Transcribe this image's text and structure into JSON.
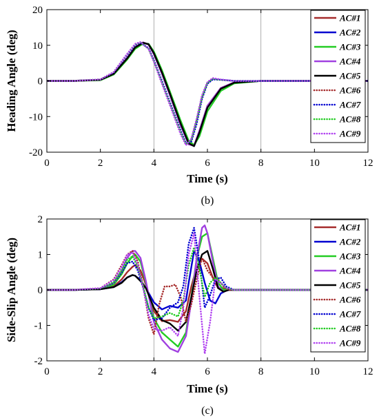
{
  "chart_data": [
    {
      "type": "line",
      "panel_label": "(b)",
      "xlabel": "Time (s)",
      "ylabel": "Heading Angle (deg)",
      "xlim": [
        0,
        12
      ],
      "ylim": [
        -20,
        20
      ],
      "xticks": [
        0,
        2,
        4,
        6,
        8,
        10,
        12
      ],
      "yticks": [
        -20,
        -10,
        0,
        10,
        20
      ],
      "grid": "vertical lines at 4 and 8",
      "legend": "top-right",
      "series": [
        {
          "name": "AC#1",
          "color": "#a52a2a",
          "style": "solid",
          "x": [
            0,
            1,
            2,
            2.5,
            3,
            3.3,
            3.6,
            3.8,
            4,
            4.3,
            4.6,
            5,
            5.3,
            5.5,
            5.7,
            6,
            6.5,
            7,
            8,
            10,
            12
          ],
          "y": [
            0,
            0,
            0.3,
            2,
            6.5,
            9.5,
            10.8,
            10.2,
            7.5,
            2,
            -4,
            -12.5,
            -17.8,
            -18.2,
            -14,
            -7,
            -2,
            -0.4,
            0,
            0,
            0
          ]
        },
        {
          "name": "AC#2",
          "color": "#0000d0",
          "style": "solid",
          "x": [
            0,
            1,
            2,
            2.5,
            3,
            3.3,
            3.6,
            3.8,
            4,
            4.3,
            4.6,
            5,
            5.3,
            5.5,
            5.7,
            6,
            6.5,
            7,
            8,
            10,
            12
          ],
          "y": [
            0,
            0,
            0.3,
            2,
            6.3,
            9.4,
            10.7,
            10.3,
            7.8,
            2.4,
            -3.6,
            -12,
            -17.5,
            -18.3,
            -14.5,
            -7.5,
            -2.2,
            -0.5,
            0,
            0,
            0
          ]
        },
        {
          "name": "AC#3",
          "color": "#22cc22",
          "style": "solid",
          "x": [
            0,
            1,
            2,
            2.5,
            3,
            3.3,
            3.6,
            3.8,
            4,
            4.3,
            4.6,
            5,
            5.3,
            5.5,
            5.7,
            6,
            6.5,
            7,
            8,
            10,
            12
          ],
          "y": [
            0,
            0,
            0.2,
            1.8,
            6,
            9,
            10.5,
            10.4,
            8.2,
            3,
            -3,
            -11.2,
            -16.8,
            -18,
            -15.5,
            -8.5,
            -2.8,
            -0.7,
            0,
            0,
            0
          ]
        },
        {
          "name": "AC#4",
          "color": "#a040e0",
          "style": "solid",
          "x": [
            0,
            1,
            2,
            2.5,
            3,
            3.3,
            3.6,
            3.8,
            4,
            4.3,
            4.6,
            5,
            5.3,
            5.5,
            5.7,
            6,
            6.5,
            7,
            8,
            10,
            12
          ],
          "y": [
            0,
            0,
            0.3,
            2,
            6.5,
            9.5,
            10.8,
            10.2,
            7.5,
            2,
            -4,
            -12.5,
            -17.8,
            -18.2,
            -14,
            -7,
            -2,
            -0.4,
            0,
            0,
            0
          ]
        },
        {
          "name": "AC#5",
          "color": "#000000",
          "style": "solid",
          "x": [
            0,
            1,
            2,
            2.5,
            3,
            3.3,
            3.6,
            3.8,
            4,
            4.3,
            4.6,
            5,
            5.3,
            5.5,
            5.7,
            6,
            6.5,
            7,
            8,
            10,
            12
          ],
          "y": [
            0,
            0,
            0.3,
            2,
            6.3,
            9.4,
            10.7,
            10.3,
            7.8,
            2.4,
            -3.6,
            -12,
            -17.5,
            -18.3,
            -14.5,
            -7.5,
            -2.2,
            -0.5,
            0,
            0,
            0
          ]
        },
        {
          "name": "AC#6",
          "color": "#a52a2a",
          "style": "dotted",
          "x": [
            0,
            1,
            2,
            2.5,
            3,
            3.3,
            3.5,
            3.8,
            4,
            4.3,
            4.6,
            5,
            5.2,
            5.4,
            5.6,
            5.8,
            6,
            6.2,
            6.5,
            7,
            8,
            10,
            12
          ],
          "y": [
            0,
            0,
            0.4,
            2.5,
            7.5,
            10.3,
            10.8,
            9,
            5.5,
            -0.5,
            -6.5,
            -14.5,
            -17.8,
            -16.5,
            -11,
            -4.5,
            -0.5,
            0.6,
            0.3,
            0,
            0,
            0,
            0
          ]
        },
        {
          "name": "AC#7",
          "color": "#0000d0",
          "style": "dotted",
          "x": [
            0,
            1,
            2,
            2.5,
            3,
            3.3,
            3.5,
            3.8,
            4,
            4.3,
            4.6,
            5,
            5.2,
            5.4,
            5.6,
            5.8,
            6,
            6.2,
            6.5,
            7,
            8,
            10,
            12
          ],
          "y": [
            0,
            0,
            0.4,
            2.4,
            7.3,
            10.1,
            10.7,
            9.2,
            5.8,
            0,
            -6,
            -14,
            -17.5,
            -17,
            -12,
            -5,
            -0.8,
            0.4,
            0.3,
            0,
            0,
            0,
            0
          ]
        },
        {
          "name": "AC#8",
          "color": "#22cc22",
          "style": "dotted",
          "x": [
            0,
            1,
            2,
            2.5,
            3,
            3.3,
            3.5,
            3.8,
            4,
            4.3,
            4.6,
            5,
            5.2,
            5.4,
            5.6,
            5.8,
            6,
            6.2,
            6.5,
            7,
            8,
            10,
            12
          ],
          "y": [
            0,
            0,
            0.4,
            2.5,
            7.5,
            10.3,
            10.8,
            9,
            5.5,
            -0.5,
            -6.5,
            -14.5,
            -17.8,
            -16.5,
            -11,
            -4.5,
            -0.5,
            0.6,
            0.3,
            0,
            0,
            0,
            0
          ]
        },
        {
          "name": "AC#9",
          "color": "#b040f0",
          "style": "dotted",
          "x": [
            0,
            1,
            2,
            2.5,
            3,
            3.3,
            3.5,
            3.8,
            4,
            4.3,
            4.6,
            5,
            5.2,
            5.4,
            5.6,
            5.8,
            6,
            6.2,
            6.5,
            7,
            8,
            10,
            12
          ],
          "y": [
            0,
            0,
            0.4,
            2.5,
            7.6,
            10.4,
            10.9,
            9,
            5.4,
            -0.8,
            -6.8,
            -15,
            -18,
            -16.2,
            -10.5,
            -4,
            -0.3,
            0.8,
            0.4,
            0,
            0,
            0,
            0
          ]
        }
      ]
    },
    {
      "type": "line",
      "panel_label": "(c)",
      "xlabel": "Time (s)",
      "ylabel": "Side-Slip Angle (deg)",
      "xlim": [
        0,
        12
      ],
      "ylim": [
        -2,
        2
      ],
      "xticks": [
        0,
        2,
        4,
        6,
        8,
        10,
        12
      ],
      "yticks": [
        -2,
        -1,
        0,
        1,
        2
      ],
      "grid": "vertical lines at 4 and 8",
      "legend": "top-right",
      "series": [
        {
          "name": "AC#1",
          "color": "#a52a2a",
          "style": "solid",
          "x": [
            0,
            1,
            2,
            2.5,
            2.8,
            3,
            3.2,
            3.3,
            3.5,
            3.7,
            4,
            4.3,
            4.6,
            4.9,
            5.2,
            5.4,
            5.6,
            5.8,
            6,
            6.2,
            6.4,
            6.6,
            6.8,
            7,
            7.5,
            8,
            10,
            12
          ],
          "y": [
            0,
            0,
            0.02,
            0.1,
            0.3,
            0.5,
            0.65,
            0.7,
            0.55,
            0.15,
            -0.6,
            -0.88,
            -0.85,
            -0.9,
            -0.6,
            0.1,
            0.65,
            0.88,
            0.75,
            0.35,
            0.05,
            0.05,
            0.02,
            0,
            0,
            0,
            0,
            0
          ]
        },
        {
          "name": "AC#2",
          "color": "#0000d0",
          "style": "solid",
          "x": [
            0,
            1,
            2,
            2.5,
            2.8,
            3,
            3.2,
            3.3,
            3.5,
            3.7,
            4,
            4.3,
            4.6,
            4.9,
            5.2,
            5.3,
            5.5,
            5.7,
            5.9,
            6.1,
            6.3,
            6.5,
            6.8,
            7,
            7.5,
            8,
            10,
            12
          ],
          "y": [
            0,
            0,
            0.02,
            0.08,
            0.22,
            0.35,
            0.42,
            0.4,
            0.28,
            0.05,
            -0.35,
            -0.55,
            -0.45,
            -0.5,
            -0.3,
            0.2,
            1.1,
            0.8,
            0.2,
            -0.3,
            -0.38,
            -0.1,
            0.02,
            0,
            0,
            0,
            0,
            0
          ]
        },
        {
          "name": "AC#3",
          "color": "#22cc22",
          "style": "solid",
          "x": [
            0,
            1,
            2,
            2.5,
            2.8,
            3,
            3.2,
            3.3,
            3.5,
            3.7,
            4,
            4.3,
            4.6,
            4.9,
            5.2,
            5.4,
            5.6,
            5.8,
            6,
            6.2,
            6.4,
            6.6,
            6.8,
            7,
            7.5,
            8,
            10,
            12
          ],
          "y": [
            0,
            0,
            0.03,
            0.15,
            0.45,
            0.75,
            0.95,
            1,
            0.8,
            0.2,
            -0.8,
            -1.2,
            -1.4,
            -1.6,
            -1.2,
            -0.2,
            0.9,
            1.5,
            1.6,
            0.9,
            0.2,
            0,
            0,
            0,
            0,
            0,
            0,
            0
          ]
        },
        {
          "name": "AC#4",
          "color": "#a040e0",
          "style": "solid",
          "x": [
            0,
            1,
            2,
            2.5,
            2.8,
            3,
            3.2,
            3.3,
            3.5,
            3.7,
            4,
            4.3,
            4.6,
            4.9,
            5.2,
            5.4,
            5.6,
            5.8,
            5.9,
            6,
            6.2,
            6.4,
            6.6,
            6.8,
            7,
            8,
            10,
            12
          ],
          "y": [
            0,
            0,
            0.03,
            0.2,
            0.55,
            0.9,
            1.1,
            1.1,
            0.9,
            0.25,
            -0.9,
            -1.4,
            -1.65,
            -1.75,
            -1.3,
            -0.3,
            0.9,
            1.75,
            1.82,
            1.6,
            0.8,
            0.1,
            -0.05,
            0,
            0,
            0,
            0,
            0
          ]
        },
        {
          "name": "AC#5",
          "color": "#000000",
          "style": "solid",
          "x": [
            0,
            1,
            2,
            2.5,
            2.8,
            3,
            3.2,
            3.3,
            3.5,
            3.7,
            4,
            4.3,
            4.6,
            4.9,
            5.2,
            5.4,
            5.6,
            5.8,
            6,
            6.2,
            6.4,
            6.6,
            6.8,
            7,
            7.5,
            8,
            10,
            12
          ],
          "y": [
            0,
            0,
            0.02,
            0.08,
            0.2,
            0.35,
            0.42,
            0.4,
            0.25,
            0.05,
            -0.5,
            -0.85,
            -0.95,
            -1.15,
            -0.9,
            -0.2,
            0.55,
            1.0,
            1.1,
            0.6,
            0.05,
            -0.05,
            0,
            0,
            0,
            0,
            0,
            0
          ]
        },
        {
          "name": "AC#6",
          "color": "#a52a2a",
          "style": "dotted",
          "x": [
            0,
            1,
            2,
            2.5,
            2.8,
            3,
            3.2,
            3.4,
            3.6,
            3.8,
            4,
            4.2,
            4.4,
            4.6,
            4.8,
            5,
            5.2,
            5.4,
            5.6,
            5.8,
            6,
            6.2,
            6.4,
            6.6,
            6.8,
            7,
            7.5,
            8,
            10,
            12
          ],
          "y": [
            0,
            0,
            0.05,
            0.3,
            0.7,
            1.0,
            1.1,
            0.8,
            0.1,
            -0.8,
            -1.25,
            -0.4,
            0.1,
            0.1,
            0.15,
            -0.2,
            -0.9,
            -0.4,
            0.3,
            0.9,
            0.55,
            0.35,
            0.3,
            0.1,
            0,
            0,
            0,
            0,
            0,
            0
          ]
        },
        {
          "name": "AC#7",
          "color": "#0000d0",
          "style": "dotted",
          "x": [
            0,
            1,
            2,
            2.5,
            2.8,
            3,
            3.2,
            3.4,
            3.6,
            3.8,
            4,
            4.3,
            4.6,
            4.9,
            5.1,
            5.3,
            5.5,
            5.7,
            5.9,
            6.1,
            6.3,
            6.5,
            6.7,
            7,
            7.5,
            8,
            10,
            12
          ],
          "y": [
            0,
            0,
            0.04,
            0.2,
            0.5,
            0.75,
            0.8,
            0.55,
            0.05,
            -0.5,
            -0.85,
            -0.8,
            -0.5,
            -0.35,
            0.1,
            1.3,
            1.75,
            0.8,
            -0.5,
            -0.15,
            0.3,
            0.35,
            0.1,
            0,
            0,
            0,
            0,
            0
          ]
        },
        {
          "name": "AC#8",
          "color": "#22cc22",
          "style": "dotted",
          "x": [
            0,
            1,
            2,
            2.5,
            2.8,
            3,
            3.2,
            3.4,
            3.6,
            3.8,
            4,
            4.3,
            4.6,
            4.9,
            5.1,
            5.3,
            5.5,
            5.7,
            5.9,
            6.1,
            6.3,
            6.5,
            6.7,
            7,
            7.5,
            8,
            10,
            12
          ],
          "y": [
            0,
            0,
            0.04,
            0.22,
            0.55,
            0.85,
            0.95,
            0.65,
            0.1,
            -0.5,
            -0.8,
            -0.75,
            -0.65,
            -0.75,
            -0.3,
            0.7,
            1.2,
            0.6,
            -0.2,
            0.2,
            0.35,
            0.2,
            0.05,
            0,
            0,
            0,
            0,
            0
          ]
        },
        {
          "name": "AC#9",
          "color": "#b040f0",
          "style": "dotted",
          "x": [
            0,
            1,
            2,
            2.5,
            2.8,
            3,
            3.2,
            3.4,
            3.6,
            3.8,
            4,
            4.3,
            4.6,
            4.9,
            5.1,
            5.3,
            5.5,
            5.7,
            5.9,
            6.1,
            6.3,
            6.5,
            6.7,
            7,
            7.5,
            8,
            10,
            12
          ],
          "y": [
            0,
            0,
            0.05,
            0.28,
            0.65,
            1.0,
            1.05,
            0.7,
            0.05,
            -0.7,
            -1.1,
            -1.15,
            -1.05,
            -1.3,
            -0.5,
            1.0,
            1.6,
            -0.2,
            -1.8,
            -0.9,
            0.3,
            0.2,
            0.05,
            0,
            0,
            0,
            0,
            0
          ]
        }
      ]
    }
  ]
}
